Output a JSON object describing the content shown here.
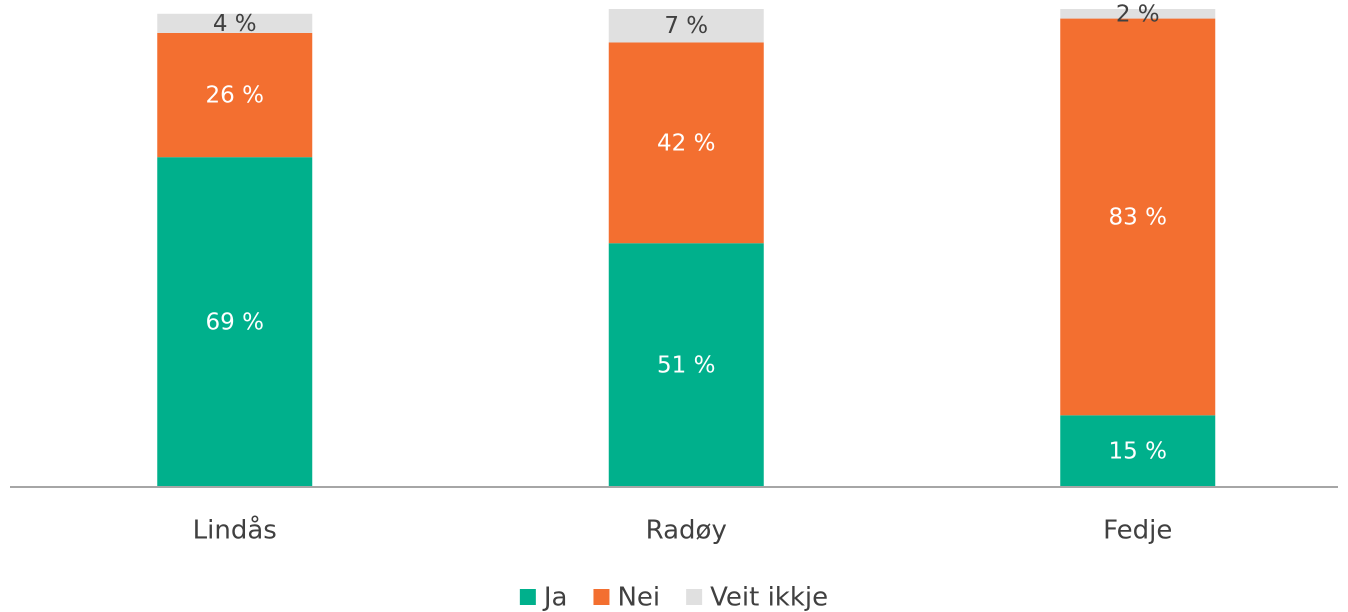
{
  "chart_data": {
    "type": "stacked_bar",
    "categories": [
      "Lindås",
      "Radøy",
      "Fedje"
    ],
    "series": [
      {
        "name": "Ja",
        "color": "#00b08c",
        "values": [
          69,
          51,
          15
        ],
        "value_labels": [
          "69 %",
          "51 %",
          "15 %"
        ]
      },
      {
        "name": "Nei",
        "color": "#f36f30",
        "values": [
          26,
          42,
          83
        ],
        "value_labels": [
          "26 %",
          "42 %",
          "83 %"
        ]
      },
      {
        "name": "Veit ikkje",
        "color": "#e0e0e0",
        "values": [
          4,
          7,
          2
        ],
        "value_labels": [
          "4 %",
          "7 %",
          "2 %"
        ]
      }
    ],
    "ylim": [
      0,
      100
    ],
    "legend": "bottom"
  }
}
